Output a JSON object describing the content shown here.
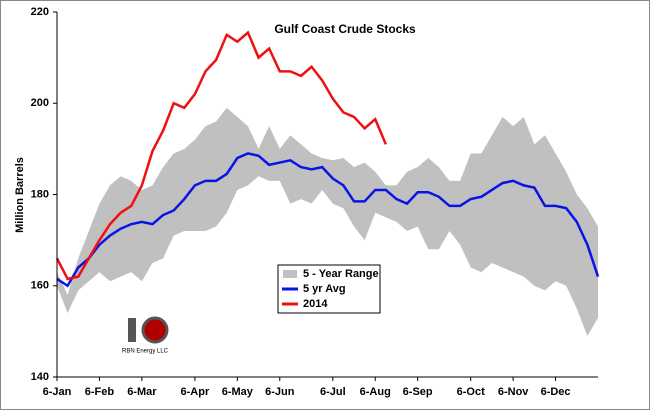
{
  "chart_data": {
    "type": "line",
    "title": "Gulf Coast Crude Stocks",
    "y_label": "Million Barrels",
    "logo_text": "RBN Energy LLC",
    "categories": [
      "6-Jan",
      null,
      null,
      null,
      "6-Feb",
      null,
      null,
      null,
      "6-Mar",
      null,
      null,
      null,
      null,
      "6-Apr",
      null,
      null,
      null,
      "6-May",
      null,
      null,
      null,
      "6-Jun",
      null,
      null,
      null,
      null,
      "6-Jul",
      null,
      null,
      null,
      "6-Aug",
      null,
      null,
      null,
      "6-Sep",
      null,
      null,
      null,
      null,
      "6-Oct",
      null,
      null,
      null,
      "6-Nov",
      null,
      null,
      null,
      "6-Dec",
      null,
      null,
      null,
      null
    ],
    "ylim": [
      140,
      220
    ],
    "yticks": [
      140,
      160,
      180,
      200,
      220
    ],
    "legend": "center",
    "series": [
      {
        "name": "5 - Year Range",
        "color": "#c0c0c0",
        "kind": "band",
        "high": [
          163,
          158,
          166,
          172,
          178,
          182,
          184,
          183,
          181,
          182,
          186,
          189,
          190,
          192,
          195,
          196,
          199,
          197,
          195,
          190,
          195,
          190,
          193,
          191,
          189,
          188,
          187.5,
          188,
          186,
          187,
          185,
          182,
          182,
          185,
          186,
          188,
          186,
          183,
          183,
          189,
          189,
          193,
          197,
          195,
          197,
          191,
          193,
          189,
          185,
          180,
          177,
          173
        ],
        "low": [
          160,
          154,
          159,
          161,
          163,
          161,
          162,
          163,
          161,
          165,
          166,
          171,
          172,
          172,
          172,
          173,
          176,
          181,
          182,
          184,
          183,
          183,
          178,
          179,
          178,
          181,
          178,
          177,
          173,
          170,
          176,
          175,
          174,
          172,
          173,
          168,
          168,
          172,
          169,
          164,
          163,
          165,
          164,
          163,
          162,
          160,
          159,
          161,
          160,
          155,
          149,
          153
        ]
      },
      {
        "name": "5 yr Avg",
        "color": "#0a14e6",
        "values": [
          161.5,
          160,
          164,
          166,
          169,
          171,
          172.5,
          173.5,
          174,
          173.5,
          175.5,
          176.5,
          179,
          182,
          183,
          183,
          184.5,
          188,
          189,
          188.5,
          186.5,
          187,
          187.5,
          186,
          185.5,
          186,
          183.5,
          182,
          178.5,
          178.5,
          181,
          181,
          179,
          178,
          180.5,
          180.5,
          179.5,
          177.5,
          177.5,
          179,
          179.5,
          181,
          182.5,
          183,
          182,
          181.5,
          177.5,
          177.5,
          177,
          174,
          169,
          162
        ]
      },
      {
        "name": "2014",
        "color": "#ee1111",
        "values": [
          166,
          161.5,
          162,
          166,
          170,
          173.5,
          176,
          177.5,
          182,
          189.5,
          194,
          200,
          199,
          202,
          207,
          209.5,
          215,
          213.5,
          215.5,
          210,
          212,
          207,
          207,
          206,
          208,
          205,
          201,
          198,
          197,
          194.5,
          196.5,
          191,
          null,
          null,
          null,
          null,
          null,
          null,
          null,
          null,
          null,
          null,
          null,
          null,
          null,
          null,
          null,
          null,
          null,
          null,
          null,
          null
        ]
      }
    ]
  }
}
